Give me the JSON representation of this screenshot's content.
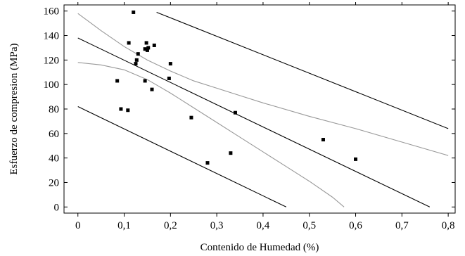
{
  "chart_data": {
    "type": "scatter",
    "title": "",
    "xlabel": "Contenido de Humedad (%)",
    "ylabel": "Esfuerzo de compresion (MPa)",
    "xlim": [
      -0.03,
      0.815
    ],
    "ylim": [
      -5,
      165
    ],
    "x_ticks": [
      0,
      0.1,
      0.2,
      0.3,
      0.4,
      0.5,
      0.6,
      0.7,
      0.8
    ],
    "x_tick_labels": [
      "0",
      "0,1",
      "0,2",
      "0,3",
      "0,4",
      "0,5",
      "0,6",
      "0,7",
      "0,8"
    ],
    "y_ticks": [
      0,
      20,
      40,
      60,
      80,
      100,
      120,
      140,
      160
    ],
    "y_tick_labels": [
      "0",
      "20",
      "40",
      "60",
      "80",
      "100",
      "120",
      "140",
      "160"
    ],
    "grid": false,
    "legend": "none",
    "points": {
      "x": [
        0.12,
        0.11,
        0.148,
        0.152,
        0.145,
        0.15,
        0.165,
        0.13,
        0.127,
        0.125,
        0.2,
        0.085,
        0.145,
        0.197,
        0.16,
        0.093,
        0.108,
        0.245,
        0.34,
        0.33,
        0.28,
        0.53,
        0.6
      ],
      "y": [
        159,
        134,
        134,
        130,
        129,
        128,
        132,
        125,
        120,
        117,
        117,
        103,
        103,
        105,
        96,
        80,
        79,
        73,
        77,
        44,
        36,
        55,
        39
      ]
    },
    "regression_lines": [
      {
        "role": "fit",
        "color": "#000000",
        "x": [
          0,
          0.76
        ],
        "y": [
          138,
          0
        ]
      },
      {
        "role": "prediction-upper",
        "color": "#000000",
        "x": [
          0.17,
          0.8
        ],
        "y": [
          159,
          64
        ]
      },
      {
        "role": "prediction-lower",
        "color": "#000000",
        "x": [
          0,
          0.45
        ],
        "y": [
          82,
          0
        ]
      },
      {
        "role": "confidence-upper",
        "color": "#999999",
        "x": [
          0,
          0.05,
          0.1,
          0.15,
          0.2,
          0.25,
          0.3,
          0.35,
          0.4,
          0.5,
          0.6,
          0.7,
          0.8
        ],
        "y": [
          158,
          144,
          131,
          120,
          111,
          103,
          97,
          91,
          85,
          74,
          64,
          53,
          42
        ]
      },
      {
        "role": "confidence-lower",
        "color": "#999999",
        "x": [
          0,
          0.05,
          0.1,
          0.15,
          0.2,
          0.25,
          0.3,
          0.35,
          0.4,
          0.45,
          0.5,
          0.55,
          0.575
        ],
        "y": [
          118,
          116,
          112,
          104,
          93,
          81,
          69,
          57,
          45,
          33,
          21,
          8,
          0
        ]
      }
    ]
  }
}
